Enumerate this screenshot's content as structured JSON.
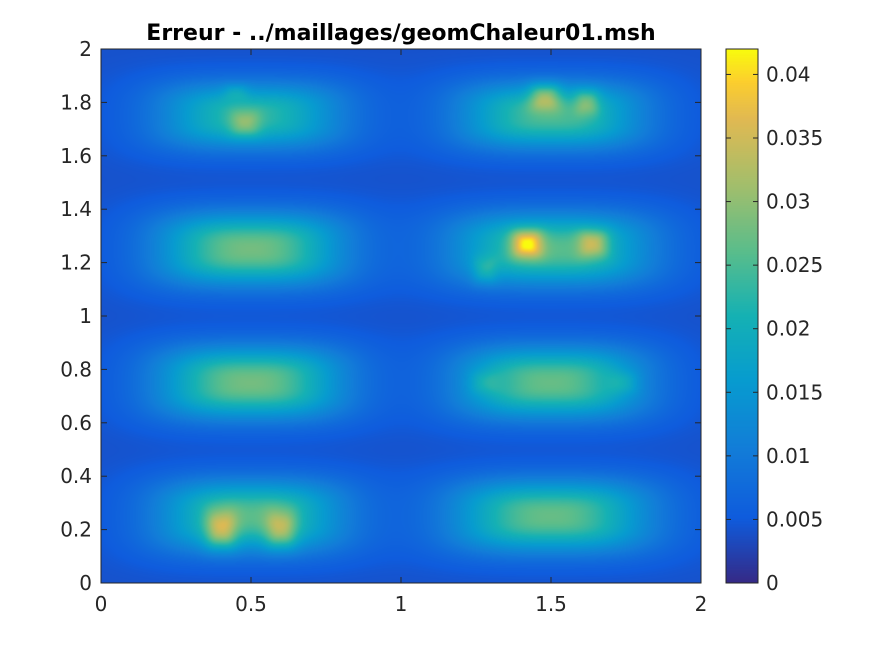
{
  "chart_data": {
    "type": "heatmap",
    "title": "Erreur - ../maillages/geomChaleur01.msh",
    "xlabel": "",
    "ylabel": "",
    "xlim": [
      0,
      2
    ],
    "ylim": [
      0,
      2
    ],
    "x_ticks": [
      0,
      0.5,
      1,
      1.5,
      2
    ],
    "x_tick_labels": [
      "0",
      "0.5",
      "1",
      "1.5",
      "2"
    ],
    "y_ticks": [
      0,
      0.2,
      0.4,
      0.6,
      0.8,
      1,
      1.2,
      1.4,
      1.6,
      1.8,
      2
    ],
    "y_tick_labels": [
      "0",
      "0.2",
      "0.4",
      "0.6",
      "0.8",
      "1",
      "1.2",
      "1.4",
      "1.6",
      "1.8",
      "2"
    ],
    "colorbar": {
      "min": 0,
      "max": 0.042,
      "ticks": [
        0,
        0.005,
        0.01,
        0.015,
        0.02,
        0.025,
        0.03,
        0.035,
        0.04
      ],
      "tick_labels": [
        "0",
        "0.005",
        "0.01",
        "0.015",
        "0.02",
        "0.025",
        "0.03",
        "0.035",
        "0.04"
      ],
      "colormap": "parula"
    },
    "grid": false,
    "background_value": 0.004,
    "blobs": [
      {
        "cx": 0.5,
        "cy": 0.25,
        "sx": 0.3,
        "sy": 0.13,
        "peak": 0.022
      },
      {
        "cx": 0.4,
        "cy": 0.2,
        "sx": 0.05,
        "sy": 0.07,
        "peak": 0.013
      },
      {
        "cx": 0.6,
        "cy": 0.2,
        "sx": 0.05,
        "sy": 0.07,
        "peak": 0.011
      },
      {
        "cx": 1.5,
        "cy": 0.25,
        "sx": 0.32,
        "sy": 0.13,
        "peak": 0.023
      },
      {
        "cx": 0.5,
        "cy": 0.75,
        "sx": 0.3,
        "sy": 0.13,
        "peak": 0.024
      },
      {
        "cx": 1.5,
        "cy": 0.75,
        "sx": 0.3,
        "sy": 0.13,
        "peak": 0.023
      },
      {
        "cx": 1.28,
        "cy": 0.75,
        "sx": 0.05,
        "sy": 0.04,
        "peak": 0.004
      },
      {
        "cx": 1.74,
        "cy": 0.75,
        "sx": 0.05,
        "sy": 0.04,
        "peak": 0.004
      },
      {
        "cx": 0.5,
        "cy": 1.25,
        "sx": 0.3,
        "sy": 0.13,
        "peak": 0.024
      },
      {
        "cx": 1.5,
        "cy": 1.25,
        "sx": 0.32,
        "sy": 0.13,
        "peak": 0.022
      },
      {
        "cx": 1.42,
        "cy": 1.27,
        "sx": 0.05,
        "sy": 0.05,
        "peak": 0.018
      },
      {
        "cx": 1.64,
        "cy": 1.27,
        "sx": 0.05,
        "sy": 0.05,
        "peak": 0.012
      },
      {
        "cx": 1.28,
        "cy": 1.17,
        "sx": 0.04,
        "sy": 0.05,
        "peak": 0.006
      },
      {
        "cx": 0.5,
        "cy": 1.75,
        "sx": 0.3,
        "sy": 0.12,
        "peak": 0.019
      },
      {
        "cx": 0.48,
        "cy": 1.72,
        "sx": 0.05,
        "sy": 0.05,
        "peak": 0.008
      },
      {
        "cx": 0.45,
        "cy": 1.84,
        "sx": 0.04,
        "sy": 0.03,
        "peak": 0.004
      },
      {
        "cx": 1.5,
        "cy": 1.75,
        "sx": 0.3,
        "sy": 0.12,
        "peak": 0.021
      },
      {
        "cx": 1.48,
        "cy": 1.82,
        "sx": 0.05,
        "sy": 0.05,
        "peak": 0.012
      },
      {
        "cx": 1.62,
        "cy": 1.8,
        "sx": 0.04,
        "sy": 0.05,
        "peak": 0.008
      }
    ]
  }
}
